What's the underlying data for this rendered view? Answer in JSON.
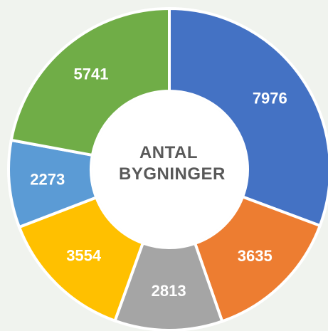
{
  "chart_data": {
    "type": "donut",
    "title": "ANTAL BYGNINGER",
    "categories": [
      null,
      null,
      null,
      null,
      null,
      null
    ],
    "values": [
      7976,
      3635,
      2813,
      3554,
      2273,
      5741
    ],
    "colors": [
      "#4472c4",
      "#ed7d31",
      "#a5a5a5",
      "#ffc000",
      "#5b9bd5",
      "#70ad47"
    ]
  }
}
